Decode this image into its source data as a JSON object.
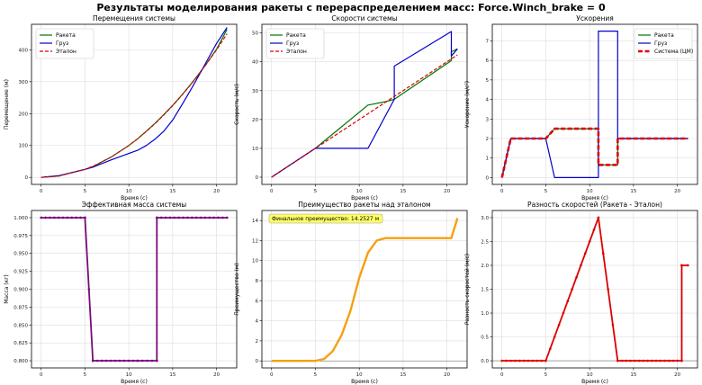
{
  "suptitle": "Результаты моделирования ракеты с перераспределением масс: Force.Winch_brake = 0",
  "colors": {
    "rocket": "#007400",
    "cargo": "#0000cc",
    "ref": "#dd0000",
    "mass": "#7a0a7a",
    "adv": "#f5a00f",
    "diff": "#dd0000",
    "annot_bg": "#ffff66",
    "grid": "#dddddd"
  },
  "chart_data": [
    {
      "id": "displacement",
      "type": "line",
      "title": "Перемещения системы",
      "xlabel": "Время (с)",
      "ylabel": "Перемещение (м)",
      "xlim": [
        -1.1,
        22.3
      ],
      "ylim": [
        -22,
        480
      ],
      "xticks": [
        0,
        5,
        10,
        15,
        20
      ],
      "yticks": [
        0,
        100,
        200,
        300,
        400
      ],
      "legend": {
        "position": "top-left",
        "entries": [
          "Ракета",
          "Груз",
          "Эталон"
        ]
      },
      "series": [
        {
          "name": "Ракета",
          "color_key": "rocket",
          "style": "solid",
          "x": [
            0,
            2,
            5,
            6,
            8,
            10,
            11,
            12,
            13,
            14,
            15,
            16,
            17,
            18,
            19,
            20,
            21.2
          ],
          "y": [
            0,
            5,
            25,
            35,
            64,
            100,
            121,
            145,
            170,
            197,
            226,
            257,
            290,
            325,
            362,
            402,
            464
          ]
        },
        {
          "name": "Груз",
          "color_key": "cargo",
          "style": "solid",
          "x": [
            0,
            2,
            5,
            6,
            8,
            10,
            11,
            12,
            13,
            14,
            15,
            16,
            17,
            18,
            19,
            20,
            21.2
          ],
          "y": [
            0,
            5,
            25,
            33,
            55,
            75,
            85,
            100,
            120,
            145,
            180,
            225,
            272,
            320,
            370,
            420,
            470
          ]
        },
        {
          "name": "Эталон",
          "color_key": "ref",
          "style": "dashed",
          "x": [
            0,
            2,
            5,
            6,
            8,
            10,
            11,
            12,
            13,
            14,
            15,
            16,
            17,
            18,
            19,
            20,
            21.2
          ],
          "y": [
            0,
            4,
            25,
            36,
            64,
            100,
            121,
            144,
            169,
            196,
            225,
            256,
            289,
            324,
            361,
            400,
            450
          ]
        }
      ]
    },
    {
      "id": "velocity",
      "type": "line",
      "title": "Скорости системы",
      "xlabel": "Время (с)",
      "ylabel": "Скорость (м/с)",
      "xlim": [
        -1.1,
        22.3
      ],
      "ylim": [
        -2.5,
        53
      ],
      "xticks": [
        0,
        5,
        10,
        15,
        20
      ],
      "yticks": [
        0,
        10,
        20,
        30,
        40,
        50
      ],
      "legend": {
        "position": "top-left",
        "entries": [
          "Ракета",
          "Груз",
          "Эталон"
        ]
      },
      "series": [
        {
          "name": "Ракета",
          "color_key": "rocket",
          "style": "solid",
          "x": [
            0,
            5,
            11,
            13,
            14,
            20.5,
            20.5,
            21.2
          ],
          "y": [
            0,
            10,
            25,
            26.2,
            27,
            40.4,
            43.5,
            44.5
          ]
        },
        {
          "name": "Груз",
          "color_key": "cargo",
          "style": "solid",
          "x": [
            0,
            5,
            5.1,
            11,
            14,
            14,
            20.5,
            20.5,
            21.2
          ],
          "y": [
            0,
            10,
            10,
            10,
            27,
            38.5,
            50.5,
            42,
            44.5
          ]
        },
        {
          "name": "Эталон",
          "color_key": "ref",
          "style": "dashed",
          "x": [
            0,
            21.2
          ],
          "y": [
            0,
            42.4
          ]
        }
      ]
    },
    {
      "id": "acceleration",
      "type": "line",
      "title": "Ускорения",
      "xlabel": "Время (с)",
      "ylabel": "Ускорение (м/с²)",
      "xlim": [
        -1.1,
        22.3
      ],
      "ylim": [
        -0.35,
        7.85
      ],
      "xticks": [
        0,
        5,
        10,
        15,
        20
      ],
      "yticks": [
        0,
        1,
        2,
        3,
        4,
        5,
        6,
        7
      ],
      "legend": {
        "position": "top-right",
        "entries": [
          "Ракета",
          "Груз",
          "Система (ЦМ)"
        ]
      },
      "series": [
        {
          "name": "Ракета",
          "color_key": "rocket",
          "style": "solid",
          "x": [
            0,
            1,
            1,
            5,
            6,
            6,
            11,
            11,
            13.2,
            13.2,
            21.2
          ],
          "y": [
            0,
            2,
            2,
            2,
            2.5,
            2.5,
            2.5,
            0.65,
            0.65,
            2,
            2
          ]
        },
        {
          "name": "Груз",
          "color_key": "cargo",
          "style": "solid",
          "x": [
            0,
            1,
            1,
            5,
            6,
            11,
            11,
            13.2,
            13.2,
            21.2
          ],
          "y": [
            0,
            2,
            2,
            2,
            0,
            0,
            7.5,
            7.5,
            2,
            2
          ]
        },
        {
          "name": "Система (ЦМ)",
          "color_key": "ref",
          "style": "dashed-thick",
          "x": [
            0,
            1,
            1,
            5,
            6,
            6,
            11,
            11,
            13.2,
            13.2,
            21.2
          ],
          "y": [
            0,
            2,
            2,
            2,
            2.5,
            2.5,
            2.5,
            0.65,
            0.65,
            2,
            2
          ]
        }
      ]
    },
    {
      "id": "effective_mass",
      "type": "line",
      "title": "Эффективная масса системы",
      "xlabel": "Время (с)",
      "ylabel": "Масса (кг)",
      "xlim": [
        -1.1,
        22.3
      ],
      "ylim": [
        0.79,
        1.01
      ],
      "xticks": [
        0,
        5,
        10,
        15,
        20
      ],
      "yticks": [
        0.8,
        0.825,
        0.85,
        0.875,
        0.9,
        0.925,
        0.95,
        0.975,
        1.0
      ],
      "series": [
        {
          "name": "Масса",
          "color_key": "mass",
          "style": "solid-markers",
          "x": [
            0,
            5,
            5.9,
            11,
            13.2,
            13.2,
            21.2
          ],
          "y": [
            1.0,
            1.0,
            0.8,
            0.8,
            0.8,
            1.0,
            1.0
          ]
        }
      ]
    },
    {
      "id": "advantage",
      "type": "line",
      "title": "Преимущество ракеты над эталоном",
      "xlabel": "Время (с)",
      "ylabel": "Преимущество (м)",
      "xlim": [
        -1.1,
        22.3
      ],
      "ylim": [
        -0.7,
        15
      ],
      "xticks": [
        0,
        5,
        10,
        15,
        20
      ],
      "yticks": [
        0,
        2,
        4,
        6,
        8,
        10,
        12,
        14
      ],
      "annotation": "Финальное преимущество: 14.2527 м",
      "series": [
        {
          "name": "Преимущество",
          "color_key": "adv",
          "style": "solid-thick",
          "x": [
            0,
            5,
            6,
            7,
            8,
            9,
            10,
            11,
            12,
            13,
            13.5,
            20.5,
            21.2
          ],
          "y": [
            0,
            0,
            0.2,
            1,
            2.6,
            5,
            8.3,
            10.8,
            12,
            12.25,
            12.25,
            12.25,
            14.25
          ]
        }
      ]
    },
    {
      "id": "velocity_diff",
      "type": "line",
      "title": "Разность скоростей (Ракета - Эталон)",
      "xlabel": "Время (с)",
      "ylabel": "Разность скоростей (м/с)",
      "xlim": [
        -1.1,
        22.3
      ],
      "ylim": [
        -0.15,
        3.15
      ],
      "xticks": [
        0,
        5,
        10,
        15,
        20
      ],
      "yticks": [
        0,
        0.5,
        1.0,
        1.5,
        2.0,
        2.5,
        3.0
      ],
      "series": [
        {
          "name": "Разность",
          "color_key": "diff",
          "style": "solid-markers",
          "x": [
            0,
            5,
            11,
            13.2,
            20.5,
            20.5,
            21.2
          ],
          "y": [
            0,
            0,
            3,
            0,
            0,
            2,
            2
          ]
        }
      ]
    }
  ]
}
